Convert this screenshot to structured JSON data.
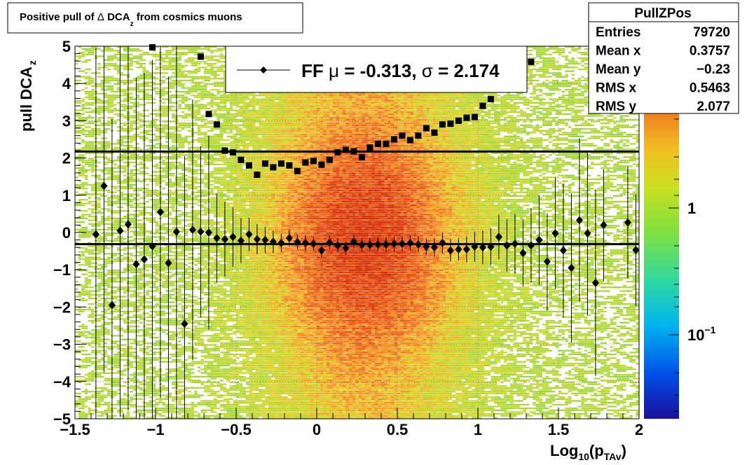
{
  "title": {
    "prefix": "Positive pull of ",
    "delta": "Δ",
    "var": "DCA",
    "sub": "z",
    "suffix": " from cosmics muons"
  },
  "stats": {
    "name": "PullZPos",
    "rows": [
      {
        "label": "Entries",
        "value": "79720"
      },
      {
        "label": "Mean x",
        "value": "0.3757"
      },
      {
        "label": "Mean y",
        "value": "−0.23"
      },
      {
        "label": "RMS x",
        "value": "0.5463"
      },
      {
        "label": "RMS y",
        "value": "2.077"
      }
    ]
  },
  "legend": {
    "prefix": "FF ",
    "mu_symbol": "μ",
    "mu_text": " = -0.313, ",
    "sigma_symbol": "σ",
    "sigma_text": " =   2.174"
  },
  "colors": {
    "mean_marker": "#000000",
    "sigma_marker": "#000000",
    "fit_line": "#000000",
    "heat_low": "#a0dd30",
    "heat_high": "#e03000"
  },
  "chart_data": {
    "type": "heatmap",
    "xlabel_main": "Log",
    "xlabel_sub1": "10",
    "xlabel_paren": "(p",
    "xlabel_sub2": "TAv",
    "xlabel_close": ")",
    "ylabel_main": "pull DCA",
    "ylabel_sub": "z",
    "xlim": [
      -1.5,
      2
    ],
    "ylim": [
      -5,
      5
    ],
    "x_ticks": [
      "−1.5",
      "−1",
      "−0.5",
      "0",
      "0.5",
      "1",
      "1.5",
      "2"
    ],
    "y_ticks": [
      "−5",
      "−4",
      "−3",
      "−2",
      "−1",
      "0",
      "1",
      "2",
      "3",
      "4",
      "5"
    ],
    "grid": true,
    "colorbar": {
      "scale": "log",
      "ticks": [
        "10",
        "1"
      ],
      "tick_exp": [
        "−1",
        ""
      ]
    },
    "fit_lines": {
      "mu": -0.313,
      "sigma": 2.174
    },
    "series": [
      {
        "marker": "diamond",
        "x": [
          -1.37,
          -1.32,
          -1.27,
          -1.22,
          -1.17,
          -1.12,
          -1.07,
          -1.02,
          -0.97,
          -0.92,
          -0.87,
          -0.82,
          -0.77,
          -0.72,
          -0.67,
          -0.62,
          -0.57,
          -0.52,
          -0.47,
          -0.42,
          -0.37,
          -0.32,
          -0.27,
          -0.22,
          -0.17,
          -0.12,
          -0.07,
          -0.02,
          0.03,
          0.08,
          0.13,
          0.18,
          0.23,
          0.28,
          0.33,
          0.38,
          0.43,
          0.48,
          0.53,
          0.58,
          0.63,
          0.68,
          0.73,
          0.78,
          0.83,
          0.88,
          0.93,
          0.98,
          1.03,
          1.08,
          1.13,
          1.18,
          1.23,
          1.28,
          1.33,
          1.38,
          1.43,
          1.48,
          1.53,
          1.58,
          1.63,
          1.68,
          1.73,
          1.78,
          1.93,
          1.98
        ],
        "y": [
          -0.05,
          1.25,
          -1.95,
          0.05,
          0.22,
          -0.85,
          -0.72,
          -0.37,
          0.55,
          -0.82,
          0.02,
          -2.45,
          0.07,
          0.02,
          0.0,
          -0.15,
          -0.18,
          -0.12,
          -0.22,
          -0.05,
          -0.18,
          -0.2,
          -0.25,
          -0.28,
          -0.15,
          -0.25,
          -0.28,
          -0.3,
          -0.48,
          -0.27,
          -0.35,
          -0.42,
          -0.25,
          -0.33,
          -0.33,
          -0.32,
          -0.32,
          -0.3,
          -0.3,
          -0.28,
          -0.32,
          -0.38,
          -0.4,
          -0.28,
          -0.48,
          -0.45,
          -0.45,
          -0.38,
          -0.4,
          -0.38,
          -0.12,
          -0.35,
          -0.3,
          -0.55,
          -0.35,
          -0.2,
          -0.78,
          -0.02,
          -0.48,
          -0.95,
          0.33,
          -0.02,
          -1.35,
          0.2,
          0.27,
          -0.47
        ],
        "yerr": [
          5,
          5,
          5,
          5,
          5,
          5,
          5,
          5,
          5,
          5,
          5,
          4.5,
          3.5,
          2.3,
          2.6,
          1.2,
          1.0,
          0.8,
          0.6,
          0.45,
          0.4,
          0.35,
          0.3,
          0.25,
          0.22,
          0.2,
          0.2,
          0.18,
          0.18,
          0.18,
          0.18,
          0.18,
          0.18,
          0.18,
          0.18,
          0.18,
          0.2,
          0.2,
          0.2,
          0.2,
          0.22,
          0.22,
          0.25,
          0.28,
          0.3,
          0.3,
          0.35,
          0.4,
          0.45,
          0.5,
          0.6,
          0.7,
          0.8,
          0.9,
          1.0,
          1.2,
          1.3,
          1.5,
          1.8,
          2.0,
          2.2,
          2.2,
          2.5,
          1.5,
          1.5,
          1.5
        ]
      },
      {
        "marker": "square",
        "x": [
          -1.02,
          -0.72,
          -0.67,
          -0.62,
          -0.57,
          -0.52,
          -0.47,
          -0.42,
          -0.37,
          -0.32,
          -0.27,
          -0.22,
          -0.17,
          -0.12,
          -0.07,
          -0.02,
          0.03,
          0.08,
          0.13,
          0.18,
          0.23,
          0.28,
          0.33,
          0.38,
          0.43,
          0.48,
          0.53,
          0.58,
          0.63,
          0.68,
          0.73,
          0.78,
          0.83,
          0.88,
          0.93,
          0.98,
          1.03,
          1.08,
          1.33
        ],
        "y": [
          4.97,
          4.72,
          3.18,
          2.9,
          2.2,
          2.15,
          1.95,
          1.8,
          1.55,
          1.85,
          1.75,
          1.85,
          1.8,
          1.65,
          1.88,
          1.92,
          1.82,
          1.95,
          2.15,
          2.22,
          2.18,
          2.02,
          2.28,
          2.38,
          2.38,
          2.5,
          2.6,
          2.48,
          2.6,
          2.8,
          2.68,
          2.9,
          2.92,
          3.0,
          3.08,
          3.1,
          3.4,
          3.58,
          4.58
        ],
        "yerr": [
          0.05,
          0.05,
          0.05,
          0.05,
          0.05,
          0.05,
          0.05,
          0.05,
          0.05,
          0.05,
          0.05,
          0.05,
          0.05,
          0.05,
          0.05,
          0.05,
          0.05,
          0.05,
          0.05,
          0.05,
          0.05,
          0.05,
          0.05,
          0.05,
          0.05,
          0.05,
          0.05,
          0.05,
          0.05,
          0.05,
          0.05,
          0.05,
          0.05,
          0.05,
          0.05,
          0.05,
          0.05,
          0.05,
          0.05
        ]
      }
    ]
  }
}
